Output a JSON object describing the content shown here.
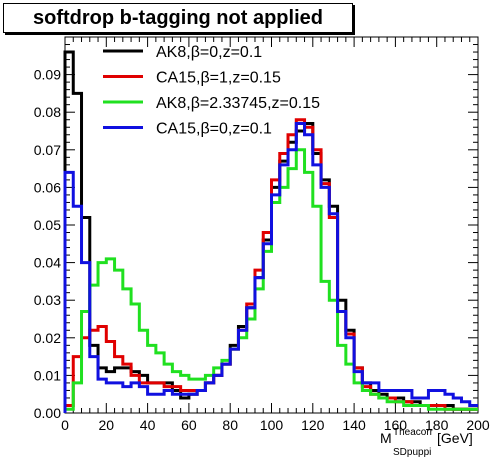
{
  "chart_data": {
    "type": "line",
    "title": "softdrop b-tagging not applied",
    "xlabel": {
      "main": "M",
      "sup": "Theacorr",
      "sub": "SDpuppi",
      "unit": "[GeV]"
    },
    "ylabel": "",
    "xlim": [
      0,
      200
    ],
    "ylim": [
      0,
      0.1
    ],
    "xticks": [
      0,
      20,
      40,
      60,
      80,
      100,
      120,
      140,
      160,
      180,
      200
    ],
    "yticks": [
      0.0,
      0.01,
      0.02,
      0.03,
      0.04,
      0.05,
      0.06,
      0.07,
      0.08,
      0.09
    ],
    "ytick_labels": [
      "0.00",
      "0.01",
      "0.02",
      "0.03",
      "0.04",
      "0.05",
      "0.06",
      "0.07",
      "0.08",
      "0.09"
    ],
    "bin_width": 4,
    "bin_start": 0,
    "legend_position": "top-left",
    "grid": false,
    "series": [
      {
        "name": "AK8,β=0,z=0.1",
        "color": "#000000",
        "values": [
          0.096,
          0.085,
          0.052,
          0.018,
          0.012,
          0.011,
          0.012,
          0.012,
          0.011,
          0.01,
          0.008,
          0.008,
          0.008,
          0.006,
          0.004,
          0.005,
          0.006,
          0.008,
          0.01,
          0.013,
          0.018,
          0.023,
          0.028,
          0.036,
          0.046,
          0.06,
          0.067,
          0.072,
          0.075,
          0.077,
          0.069,
          0.062,
          0.055,
          0.03,
          0.022,
          0.012,
          0.008,
          0.006,
          0.005,
          0.004,
          0.004,
          0.003,
          0.003,
          0.002,
          0.002,
          0.002,
          0.002,
          0.001,
          0.001,
          0.001
        ]
      },
      {
        "name": "CA15,β=1,z=0.15",
        "color": "#e00000",
        "values": [
          0.002,
          0.015,
          0.02,
          0.022,
          0.023,
          0.019,
          0.015,
          0.013,
          0.01,
          0.008,
          0.008,
          0.008,
          0.007,
          0.007,
          0.006,
          0.006,
          0.006,
          0.008,
          0.01,
          0.013,
          0.017,
          0.022,
          0.029,
          0.038,
          0.048,
          0.062,
          0.069,
          0.074,
          0.078,
          0.076,
          0.07,
          0.061,
          0.052,
          0.027,
          0.021,
          0.012,
          0.007,
          0.005,
          0.004,
          0.004,
          0.003,
          0.003,
          0.002,
          0.002,
          0.002,
          0.002,
          0.001,
          0.001,
          0.001,
          0.001
        ]
      },
      {
        "name": "AK8,β=2.33745,z=0.15",
        "color": "#20e020",
        "values": [
          0.001,
          0.008,
          0.027,
          0.034,
          0.04,
          0.041,
          0.038,
          0.033,
          0.029,
          0.022,
          0.018,
          0.016,
          0.013,
          0.011,
          0.01,
          0.009,
          0.009,
          0.01,
          0.012,
          0.014,
          0.017,
          0.02,
          0.025,
          0.033,
          0.043,
          0.056,
          0.06,
          0.065,
          0.07,
          0.064,
          0.055,
          0.035,
          0.03,
          0.018,
          0.013,
          0.008,
          0.006,
          0.005,
          0.004,
          0.003,
          0.003,
          0.002,
          0.002,
          0.002,
          0.001,
          0.001,
          0.001,
          0.001,
          0.001,
          0.001
        ]
      },
      {
        "name": "CA15,β=0,z=0.1",
        "color": "#1010e0",
        "values": [
          0.064,
          0.055,
          0.04,
          0.015,
          0.009,
          0.008,
          0.008,
          0.007,
          0.008,
          0.007,
          0.005,
          0.005,
          0.006,
          0.005,
          0.005,
          0.005,
          0.006,
          0.008,
          0.01,
          0.013,
          0.017,
          0.022,
          0.028,
          0.036,
          0.045,
          0.058,
          0.066,
          0.07,
          0.077,
          0.074,
          0.066,
          0.06,
          0.053,
          0.027,
          0.02,
          0.011,
          0.008,
          0.008,
          0.006,
          0.006,
          0.006,
          0.006,
          0.004,
          0.004,
          0.006,
          0.006,
          0.005,
          0.004,
          0.003,
          0.002
        ]
      }
    ]
  }
}
